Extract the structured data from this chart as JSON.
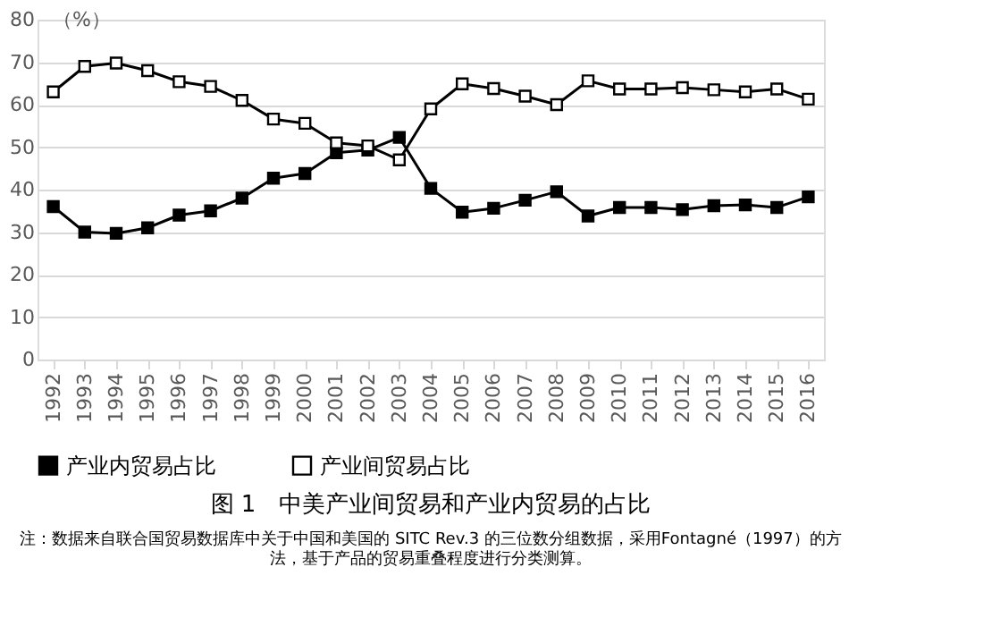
{
  "chart_data": {
    "type": "line",
    "title": "图 1　中美产业间贸易和产业内贸易的占比",
    "ylabel": "（%）",
    "categories": [
      "1992",
      "1993",
      "1994",
      "1995",
      "1996",
      "1997",
      "1998",
      "1999",
      "2000",
      "2001",
      "2002",
      "2003",
      "2004",
      "2005",
      "2006",
      "2007",
      "2008",
      "2009",
      "2010",
      "2011",
      "2012",
      "2013",
      "2014",
      "2015",
      "2016"
    ],
    "series": [
      {
        "name": "产业内贸易占比",
        "color": "#000000",
        "values": [
          36,
          30,
          29.7,
          31,
          34,
          35,
          38,
          42.7,
          43.8,
          48.7,
          49.3,
          52.3,
          40.3,
          34.7,
          35.6,
          37.5,
          39.5,
          33.8,
          35.8,
          35.8,
          35.3,
          36.2,
          36.4,
          35.8,
          38.3
        ]
      },
      {
        "name": "产业间贸易占比",
        "color": "#000000",
        "values": [
          63,
          69,
          69.8,
          68,
          65.4,
          64.3,
          61,
          56.6,
          55.6,
          51,
          50.3,
          47,
          59,
          64.9,
          63.8,
          62,
          60,
          65.6,
          63.7,
          63.7,
          64,
          63.5,
          63,
          63.7,
          61.3
        ]
      }
    ],
    "ylim": [
      0,
      80
    ],
    "yticks": [
      0,
      10,
      20,
      30,
      40,
      50,
      60,
      70,
      80
    ],
    "grid": "y",
    "legend": "bottom",
    "marker": "square",
    "line_style": "solid",
    "annotations": [
      "注：数据来自联合国贸易数据库中关于中国和美国的 SITC Rev.3 的三位数分组数据，采用Fontagné（1997）的方法，基于产品的贸易重叠程度进行分类测算。"
    ]
  }
}
